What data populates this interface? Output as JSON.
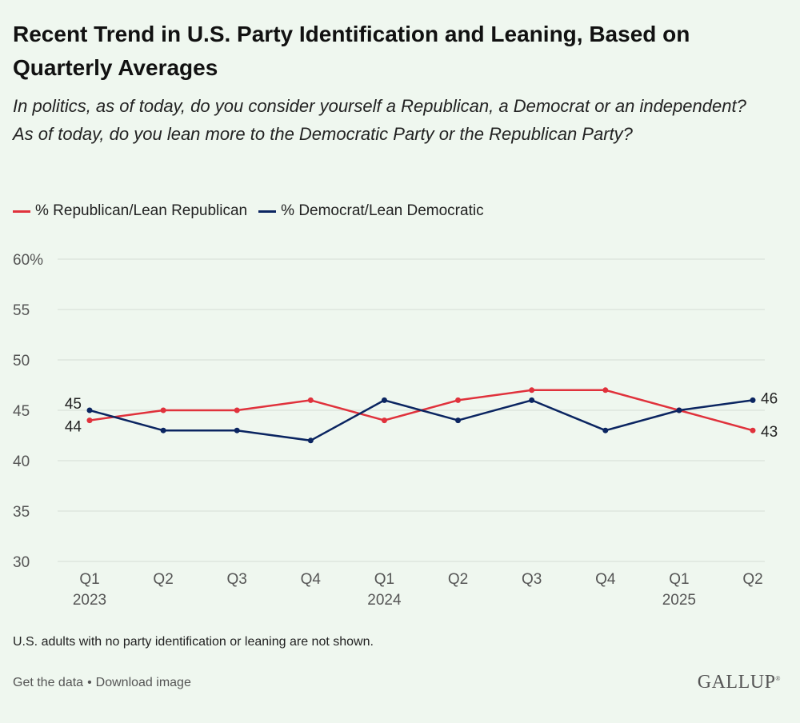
{
  "header": {
    "title": "Recent Trend in U.S. Party Identification and Leaning, Based on Quarterly Averages",
    "subtitle_line1": "In politics, as of today, do you consider yourself a Republican, a Democrat or an independent?",
    "subtitle_line2": "As of today, do you lean more to the Democratic Party or the Republican Party?"
  },
  "legend": {
    "republican": "% Republican/Lean Republican",
    "democrat": "% Democrat/Lean Democratic"
  },
  "colors": {
    "republican": "#e0323c",
    "democrat": "#0b2561",
    "grid": "#d6ded6",
    "axis_text": "#555555",
    "label_text": "#222222"
  },
  "chart_data": {
    "type": "line",
    "title": "Recent Trend in U.S. Party Identification and Leaning, Based on Quarterly Averages",
    "xlabel": "",
    "ylabel": "",
    "ylim": [
      30,
      60
    ],
    "yticks": [
      30,
      35,
      40,
      45,
      50,
      55,
      60
    ],
    "ytick_labels": [
      "30",
      "35",
      "40",
      "45",
      "50",
      "55",
      "60%"
    ],
    "categories": [
      "Q1",
      "Q2",
      "Q3",
      "Q4",
      "Q1",
      "Q2",
      "Q3",
      "Q4",
      "Q1",
      "Q2"
    ],
    "year_labels": [
      "2023",
      "",
      "",
      "",
      "2024",
      "",
      "",
      "",
      "2025",
      ""
    ],
    "series": [
      {
        "name": "% Republican/Lean Republican",
        "key": "republican",
        "values": [
          44,
          45,
          45,
          46,
          44,
          46,
          47,
          47,
          45,
          43
        ]
      },
      {
        "name": "% Democrat/Lean Democratic",
        "key": "democrat",
        "values": [
          45,
          43,
          43,
          42,
          46,
          44,
          46,
          43,
          45,
          46
        ]
      }
    ],
    "data_labels": {
      "republican_first": "44",
      "republican_last": "43",
      "democrat_first": "45",
      "democrat_last": "46"
    },
    "grid": true,
    "legend_position": "top-left"
  },
  "footnote": "U.S. adults with no party identification or leaning are not shown.",
  "footer": {
    "get_data": "Get the data",
    "separator": "•",
    "download": "Download image",
    "logo": "GALLUP",
    "logo_mark": "®"
  }
}
